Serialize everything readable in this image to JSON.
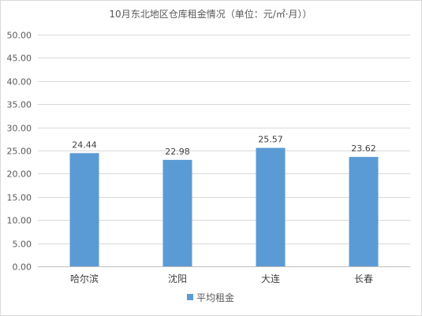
{
  "chart_data": {
    "type": "bar",
    "title": "10月东北地区仓库租金情况（单位：元/㎡·月））",
    "categories": [
      "哈尔滨",
      "沈阳",
      "大连",
      "长春"
    ],
    "series": [
      {
        "name": "平均租金",
        "values": [
          24.44,
          22.98,
          25.57,
          23.62
        ],
        "color": "#5b9bd5"
      }
    ],
    "ylim": [
      0,
      50
    ],
    "ytick_step": 5,
    "ytick_format_decimals": 2,
    "data_labels": [
      "24.44",
      "22.98",
      "25.57",
      "23.62"
    ],
    "grid": true,
    "legend_position": "bottom"
  }
}
